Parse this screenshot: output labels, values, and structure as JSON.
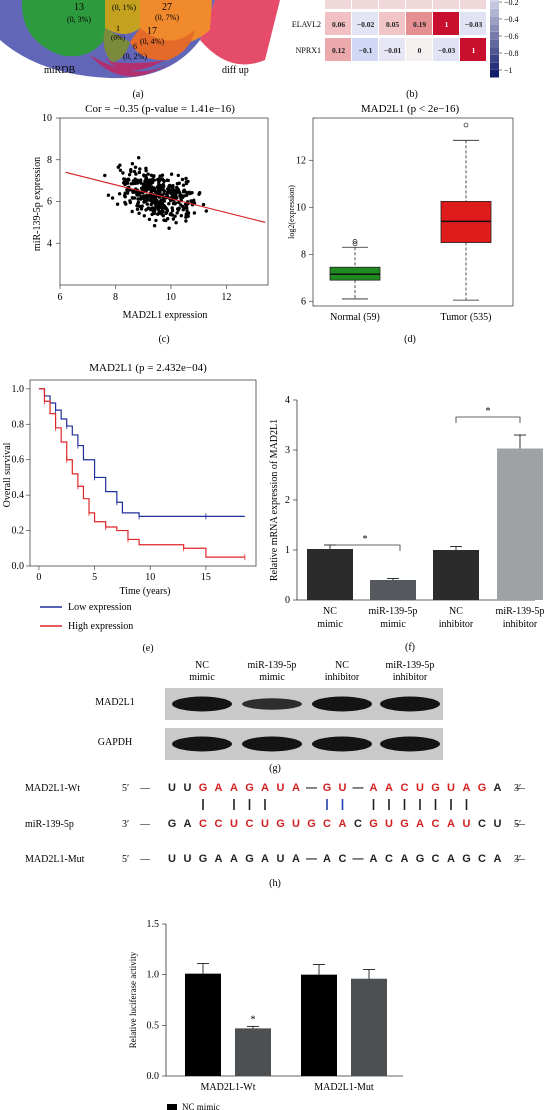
{
  "panel_a": {
    "venn_labels": [
      "miRDB",
      "diff up"
    ],
    "regions": [
      {
        "count": "13",
        "pct": "(0, 3%)",
        "color": "#2e9a3e"
      },
      {
        "count": "",
        "pct": "(0, 1%)",
        "color": "#c4a220"
      },
      {
        "count": "27",
        "pct": "(0, 7%)",
        "color": "#f08a2c"
      },
      {
        "count": "1",
        "pct": "(0%)",
        "color": "#7c8a3c"
      },
      {
        "count": "17",
        "pct": "(0, 4%)",
        "color": "#e46a2a"
      },
      {
        "count": "6",
        "pct": "(0, 2%)",
        "color": "#b2306f"
      }
    ],
    "caption": "(a)"
  },
  "panel_b": {
    "rows": [
      {
        "label": "",
        "values": [
          "",
          "",
          "",
          "",
          "",
          ""
        ]
      },
      {
        "label": "ELAVL2",
        "values": [
          "0.06",
          "−0.02",
          "0.05",
          "0.19",
          "1",
          "−0.03"
        ]
      },
      {
        "label": "NPRX1",
        "values": [
          "0.12",
          "−0.1",
          "−0.01",
          "0",
          "−0.03",
          "1"
        ]
      }
    ],
    "colorbar_ticks": [
      "−0.2",
      "−0.4",
      "−0.6",
      "−0.8",
      "−1"
    ],
    "caption": "(b)"
  },
  "panel_c": {
    "title": "Cor = −0.35 (p-value = 1.41e−16)",
    "xlabel": "MAD2L1 expression",
    "ylabel": "miR-139-5p expression",
    "xticks": [
      "6",
      "8",
      "10",
      "12"
    ],
    "yticks": [
      "4",
      "6",
      "8",
      "10"
    ],
    "caption": "(c)"
  },
  "panel_d": {
    "title": "MAD2L1 (p < 2e−16)",
    "ylabel": "log2(expression)",
    "yticks": [
      "6",
      "8",
      "10",
      "12"
    ],
    "groups": [
      "Normal (59)",
      "Tumor (535)"
    ],
    "caption": "(d)"
  },
  "panel_e": {
    "title": "MAD2L1 (p = 2.432e−04)",
    "xlabel": "Time (years)",
    "ylabel": "Overall survival",
    "xticks": [
      "0",
      "5",
      "10",
      "15"
    ],
    "yticks": [
      "0.0",
      "0.2",
      "0.4",
      "0.6",
      "0.8",
      "1.0"
    ],
    "legend": [
      {
        "label": "Low expression",
        "color": "#1f2f9a"
      },
      {
        "label": "High expression",
        "color": "#e0262a"
      }
    ],
    "caption": "(e)"
  },
  "panel_f": {
    "ylabel": "Relative mRNA expression of MAD2L1",
    "yticks": [
      "0",
      "1",
      "2",
      "3",
      "4"
    ],
    "bars": [
      {
        "label1": "NC",
        "label2": "mimic",
        "value": 1.02,
        "err": 0.08,
        "color": "#2b2b2b"
      },
      {
        "label1": "miR-139-5p",
        "label2": "mimic",
        "value": 0.4,
        "err": 0.03,
        "color": "#55585c"
      },
      {
        "label1": "NC",
        "label2": "inhibitor",
        "value": 1.0,
        "err": 0.07,
        "color": "#2b2b2b"
      },
      {
        "label1": "miR-139-5p",
        "label2": "inhibitor",
        "value": 3.03,
        "err": 0.27,
        "color": "#9fa2a5"
      }
    ],
    "sig": [
      "*",
      "*"
    ],
    "caption": "(f)"
  },
  "panel_g": {
    "columns": [
      {
        "l1": "NC",
        "l2": "mimic"
      },
      {
        "l1": "miR-139-5p",
        "l2": "mimic"
      },
      {
        "l1": "NC",
        "l2": "inhibitor"
      },
      {
        "l1": "miR-139-5p",
        "l2": "inhibitor"
      }
    ],
    "rows": [
      "MAD2L1",
      "GAPDH"
    ],
    "caption": "(g)"
  },
  "panel_h": {
    "rows": [
      {
        "name": "MAD2L1-Wt",
        "p5": "5′",
        "p3": "3′",
        "seq": "— UUGAAGAUA—GU—AACUGUAGA—"
      },
      {
        "name": "miR-139-5p",
        "p5": "3′",
        "p3": "5′",
        "seq": "— GACCUCUGUGCACGUGACAUCU—"
      },
      {
        "name": "MAD2L1-Mut",
        "p5": "5′",
        "p3": "3′",
        "seq": "— UUGAAGAUA—AC—ACAGCAGCA—"
      }
    ],
    "caption": "(h)"
  },
  "panel_i": {
    "ylabel": "Relative luciferase activity",
    "yticks": [
      "0.0",
      "0.5",
      "1.0",
      "1.5"
    ],
    "groups": [
      "MAD2L1-Wt",
      "MAD2L1-Mut"
    ],
    "legend_first": "NC mimic",
    "sig": "*"
  },
  "chart_data": [
    {
      "type": "scatter",
      "title": "Cor = −0.35 (p-value = 1.41e−16)",
      "xlabel": "MAD2L1 expression",
      "ylabel": "miR-139-5p expression",
      "xlim": [
        6,
        13.5
      ],
      "ylim": [
        2,
        10
      ],
      "fit_line": {
        "x": [
          6.2,
          13.4
        ],
        "y": [
          7.4,
          5.0
        ]
      }
    },
    {
      "type": "box",
      "title": "MAD2L1 (p < 2e−16)",
      "ylabel": "log2(expression)",
      "ylim": [
        5.8,
        13.8
      ],
      "series": [
        {
          "name": "Normal (59)",
          "min": 6.1,
          "q1": 6.9,
          "median": 7.15,
          "q3": 7.45,
          "max": 8.3,
          "color": "#1f8a1f"
        },
        {
          "name": "Tumor (535)",
          "min": 6.05,
          "q1": 8.5,
          "median": 9.4,
          "q3": 10.25,
          "max": 12.85,
          "color": "#e01b1b"
        }
      ]
    },
    {
      "type": "line",
      "title": "MAD2L1 (p = 2.432e−04)",
      "xlabel": "Time (years)",
      "ylabel": "Overall survival",
      "xlim": [
        -0.8,
        19.5
      ],
      "ylim": [
        0,
        1.05
      ],
      "series": [
        {
          "name": "Low expression",
          "x": [
            0,
            0.5,
            1,
            1.5,
            2,
            2.5,
            3,
            3.5,
            4,
            5,
            6,
            7,
            7.5,
            9,
            12,
            15,
            18.5
          ],
          "y": [
            1.0,
            0.96,
            0.92,
            0.88,
            0.83,
            0.79,
            0.74,
            0.68,
            0.6,
            0.5,
            0.42,
            0.36,
            0.3,
            0.28,
            0.28,
            0.28,
            0.28
          ]
        },
        {
          "name": "High expression",
          "x": [
            0,
            0.5,
            1,
            1.5,
            2,
            2.5,
            3,
            3.5,
            4,
            4.5,
            5,
            6,
            7,
            8,
            9,
            13,
            15,
            18.5
          ],
          "y": [
            1.0,
            0.93,
            0.86,
            0.78,
            0.7,
            0.6,
            0.52,
            0.45,
            0.38,
            0.3,
            0.25,
            0.22,
            0.2,
            0.15,
            0.12,
            0.1,
            0.05,
            0.05
          ]
        }
      ]
    },
    {
      "type": "bar",
      "ylabel": "Relative mRNA expression of MAD2L1",
      "ylim": [
        0,
        4
      ],
      "categories": [
        "NC mimic",
        "miR-139-5p mimic",
        "NC inhibitor",
        "miR-139-5p inhibitor"
      ],
      "values": [
        1.02,
        0.4,
        1.0,
        3.03
      ]
    },
    {
      "type": "bar",
      "ylabel": "Relative luciferase activity",
      "ylim": [
        0,
        1.5
      ],
      "categories": [
        "MAD2L1-Wt",
        "MAD2L1-Mut"
      ],
      "series": [
        {
          "name": "NC mimic",
          "values": [
            1.01,
            1.0
          ],
          "err": [
            0.1,
            0.1
          ],
          "color": "#000000"
        },
        {
          "name": "",
          "values": [
            0.47,
            0.96
          ],
          "err": [
            0.02,
            0.09
          ],
          "color": "#4d5053"
        }
      ]
    }
  ]
}
